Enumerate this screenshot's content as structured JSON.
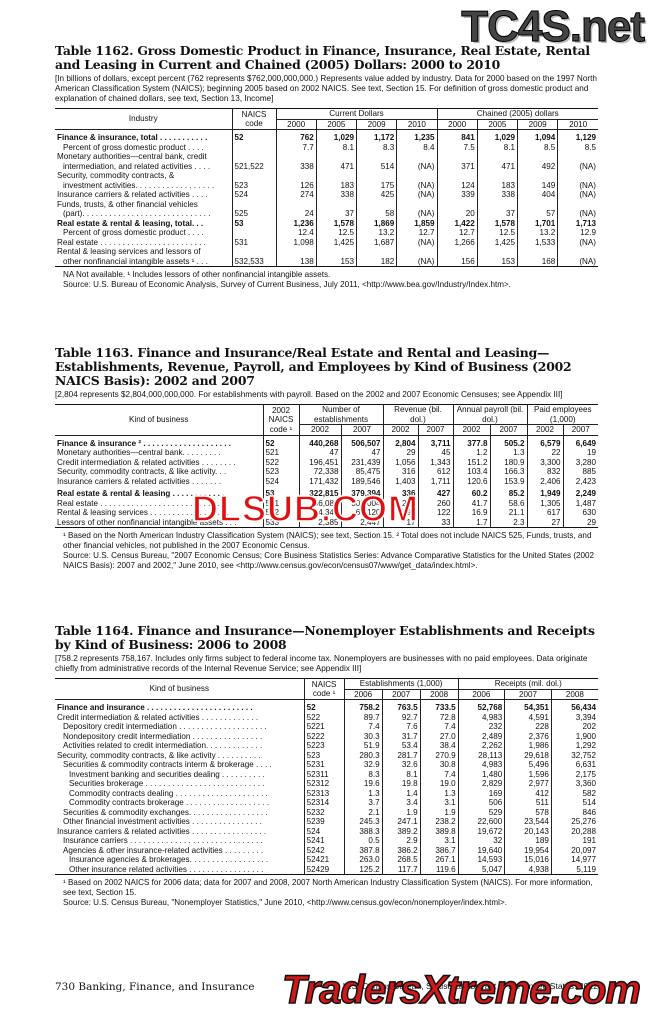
{
  "watermarks": {
    "top": "TC4S.net",
    "middle": "DLSUB.COM",
    "bottom": "TradersXtreme.com"
  },
  "t1162": {
    "title": "Table 1162. Gross Domestic Product in Finance, Insurance, Real Estate, Rental and Leasing in Current and Chained (2005) Dollars: 2000 to 2010",
    "intro": "[In billions of dollars, except percent (762 represents $762,000,000,000.) Represents value added by industry. Data for 2000 based on the 1997 North American Classification System (NAICS); beginning 2005 based on 2002 NAICS. See text, Section 15. For definition of gross domestic product and explanation of chained dollars, see text, Section 13, Income]",
    "h_industry": "Industry",
    "h_naics": "NAICS code",
    "h_cur": "Current Dollars",
    "h_chain": "Chained (2005) dollars",
    "years": [
      "2000",
      "2005",
      "2009",
      "2010",
      "2000",
      "2005",
      "2009",
      "2010"
    ],
    "rows": [
      {
        "label": "Finance & insurance, total . . . . . . . . . . .",
        "code": "52",
        "vals": [
          "762",
          "1,029",
          "1,172",
          "1,235",
          "841",
          "1,029",
          "1,094",
          "1,129"
        ],
        "bold": true
      },
      {
        "label": "Percent of gross domestic product . . . .",
        "code": "",
        "vals": [
          "7.7",
          "8.1",
          "8.3",
          "8.4",
          "7.5",
          "8.1",
          "8.5",
          "8.5"
        ],
        "indent": 1
      },
      {
        "label": "Monetary authorities—central bank, credit",
        "code": "",
        "vals": [
          "",
          "",
          "",
          "",
          "",
          "",
          "",
          ""
        ]
      },
      {
        "label": "intermediation, and related activities . . . .",
        "code": "521,522",
        "vals": [
          "338",
          "471",
          "514",
          "(NA)",
          "371",
          "471",
          "492",
          "(NA)"
        ],
        "indent": 1
      },
      {
        "label": "Security, commodity contracts, &",
        "code": "",
        "vals": [
          "",
          "",
          "",
          "",
          "",
          "",
          "",
          ""
        ]
      },
      {
        "label": "investment activities. . . . . . . . . . . . . . . . . .",
        "code": "523",
        "vals": [
          "126",
          "183",
          "175",
          "(NA)",
          "124",
          "183",
          "149",
          "(NA)"
        ],
        "indent": 1
      },
      {
        "label": "Insurance carriers & related activities . . . .",
        "code": "524",
        "vals": [
          "274",
          "338",
          "425",
          "(NA)",
          "339",
          "338",
          "404",
          "(NA)"
        ]
      },
      {
        "label": "Funds, trusts, & other financial vehicles",
        "code": "",
        "vals": [
          "",
          "",
          "",
          "",
          "",
          "",
          "",
          ""
        ]
      },
      {
        "label": "(part). . . . . . . . . . . . . . . . . . . . . . . . . . . . .",
        "code": "525",
        "vals": [
          "24",
          "37",
          "58",
          "(NA)",
          "20",
          "37",
          "57",
          "(NA)"
        ],
        "indent": 1
      },
      {
        "label": "Real estate & rental & leasing, total. . .",
        "code": "53",
        "vals": [
          "1,236",
          "1,578",
          "1,869",
          "1,859",
          "1,422",
          "1,578",
          "1,701",
          "1,713"
        ],
        "bold": true
      },
      {
        "label": "Percent of gross domestic product . . . .",
        "code": "",
        "vals": [
          "12.4",
          "12.5",
          "13.2",
          "12.7",
          "12.7",
          "12.5",
          "13.2",
          "12.9"
        ],
        "indent": 1
      },
      {
        "label": "Real estate . . . . . . . . . . . . . . . . . . . . . . . .",
        "code": "531",
        "vals": [
          "1,098",
          "1,425",
          "1,687",
          "(NA)",
          "1,266",
          "1,425",
          "1,533",
          "(NA)"
        ]
      },
      {
        "label": "Rental & leasing services and lessors of",
        "code": "",
        "vals": [
          "",
          "",
          "",
          "",
          "",
          "",
          "",
          ""
        ]
      },
      {
        "label": "other nonfinancial intangible assets ¹ . . .",
        "code": "532,533",
        "vals": [
          "138",
          "153",
          "182",
          "(NA)",
          "156",
          "153",
          "168",
          "(NA)"
        ],
        "indent": 1
      }
    ],
    "notes": [
      "NA Not available. ¹ Includes lessors of other nonfinancial intangible assets."
    ],
    "source": "Source: U.S. Bureau of Economic Analysis, Survey of Current Business, July 2011, <http://www.bea.gov/Industry/Index.htm>."
  },
  "t1163": {
    "title": "Table 1163. Finance and Insurance/Real Estate and Rental and Leasing—Establishments, Revenue, Payroll, and Employees by Kind of Business (2002 NAICS Basis): 2002 and 2007",
    "intro": "[2,804 represents $2,804,000,000,000. For establishments with payroll. Based on the 2002 and 2007 Economic Censuses; see Appendix III]",
    "h_kind": "Kind of business",
    "h_naics": "2002 NAICS code ¹",
    "h_est": "Number of establishments",
    "h_rev": "Revenue (bil. dol.)",
    "h_pay": "Annual payroll (bil. dol.)",
    "h_emp": "Paid employees (1,000)",
    "years": [
      "2002",
      "2007",
      "2002",
      "2007",
      "2002",
      "2007",
      "2002",
      "2007"
    ],
    "rows": [
      {
        "label": "Finance & insurance ² . . . . . . . . . . . . . . . . . . . .",
        "code": "52",
        "vals": [
          "440,268",
          "506,507",
          "2,804",
          "3,711",
          "377.8",
          "505.2",
          "6,579",
          "6,649"
        ],
        "bold": true
      },
      {
        "label": "Monetary authorities—central bank. . . . . . . . .",
        "code": "521",
        "vals": [
          "47",
          "47",
          "29",
          "45",
          "1.2",
          "1.3",
          "22",
          "19"
        ]
      },
      {
        "label": "Credit intermediation & related activities . . . . . . . .",
        "code": "522",
        "vals": [
          "196,451",
          "231,439",
          "1,056",
          "1,343",
          "151.2",
          "180.9",
          "3,300",
          "3,280"
        ]
      },
      {
        "label": "Security, commodity contracts, & like activity. . .",
        "code": "523",
        "vals": [
          "72,338",
          "85,475",
          "316",
          "612",
          "103.4",
          "166.3",
          "832",
          "885"
        ]
      },
      {
        "label": "Insurance carriers & related activities . . . . . . .",
        "code": "524",
        "vals": [
          "171,432",
          "189,546",
          "1,403",
          "1,711",
          "120.6",
          "153.9",
          "2,406",
          "2,423"
        ]
      },
      {
        "label": "Real estate & rental & leasing . . . . . . . . . . . .",
        "code": "53",
        "vals": [
          "322,815",
          "379,394",
          "336",
          "427",
          "60.2",
          "85.2",
          "1,949",
          "2,249"
        ],
        "bold": true,
        "gap": true
      },
      {
        "label": "Real estate . . . . . . . . . . . . . . . . . . . . . . . . . . . .",
        "code": "531",
        "vals": [
          "256,086",
          "306,004",
          "224",
          "260",
          "41.7",
          "58.6",
          "1,305",
          "1,487"
        ]
      },
      {
        "label": "Rental & leasing services . . . . . . . . . . . . . . . . . .",
        "code": "532",
        "vals": [
          "64,344",
          "65,120",
          "95",
          "122",
          "16.9",
          "21.1",
          "617",
          "630"
        ]
      },
      {
        "label": "Lessors of other nonfinancial intangible assets . . .",
        "code": "533",
        "vals": [
          "2,385",
          "2,447",
          "17",
          "33",
          "1.7",
          "2.3",
          "27",
          "29"
        ]
      }
    ],
    "notes": [
      "¹ Based on the North American Industry Classification System (NAICS); see text, Section 15. ² Total does not include NAICS 525, Funds, trusts, and other financial vehicles, not published in the 2007 Economic Census."
    ],
    "source": "Source: U.S. Census Bureau, \"2007 Economic Census; Core Business Statistics Series: Advance Comparative Statistics for the United States (2002 NAICS Basis): 2007 and 2002,\" June 2010, see <http://www.census.gov/econ/census07/www/get_data/index.html>."
  },
  "t1164": {
    "title": "Table 1164. Finance and Insurance—Nonemployer Establishments and Receipts by Kind of Business: 2006 to 2008",
    "intro": "[758.2 represents 758,167. Includes only firms subject to federal income tax. Nonemployers are businesses with no paid employees. Data originate chiefly from administrative records of the Internal Revenue Service; see Appendix III]",
    "h_kind": "Kind of business",
    "h_naics": "NAICS code ¹",
    "h_est": "Establishments (1,000)",
    "h_rec": "Receipts (mil. dol.)",
    "years": [
      "2006",
      "2007",
      "2008",
      "2006",
      "2007",
      "2008"
    ],
    "rows": [
      {
        "label": "Finance and insurance . . . . . . . . . . . . . . . . . . . . . . . .",
        "code": "52",
        "vals": [
          "758.2",
          "763.5",
          "733.5",
          "52,768",
          "54,351",
          "56,434"
        ],
        "bold": true
      },
      {
        "label": "Credit intermediation & related activities . . . . . . . . . . . . .",
        "code": "522",
        "vals": [
          "89.7",
          "92.7",
          "72.8",
          "4,983",
          "4,591",
          "3,394"
        ]
      },
      {
        "label": "Depository credit intermediation . . . . . . . . . . . . . . . . . . . .",
        "code": "5221",
        "vals": [
          "7.4",
          "7.6",
          "7.4",
          "232",
          "228",
          "202"
        ],
        "indent": 1
      },
      {
        "label": "Nondepository credit intermediation . . . . . . . . . . . . . . . .",
        "code": "5222",
        "vals": [
          "30.3",
          "31.7",
          "27.0",
          "2,489",
          "2,376",
          "1,900"
        ],
        "indent": 1
      },
      {
        "label": "Activities related to credit intermediation. . . . . . . . . . . . .",
        "code": "5223",
        "vals": [
          "51.9",
          "53.4",
          "38.4",
          "2,262",
          "1,986",
          "1,292"
        ],
        "indent": 1
      },
      {
        "label": "Security, commodity contracts, & like activity . . . . . . . . . .",
        "code": "523",
        "vals": [
          "280.3",
          "281.7",
          "270.9",
          "28,113",
          "29,618",
          "32,752"
        ]
      },
      {
        "label": "Securities & commodity contracts interm & brokerage . . . .",
        "code": "5231",
        "vals": [
          "32.9",
          "32.6",
          "30.8",
          "4,983",
          "5,496",
          "6,631"
        ],
        "indent": 1
      },
      {
        "label": "Investment banking and securities dealing . . . . . . . . . .",
        "code": "52311",
        "vals": [
          "8.3",
          "8.1",
          "7.4",
          "1,480",
          "1,596",
          "2,175"
        ],
        "indent": 2
      },
      {
        "label": "Securities brokerage . . . . . . . . . . . . . . . . . . . . . . . . . . .",
        "code": "52312",
        "vals": [
          "19.6",
          "19.8",
          "19.0",
          "2,829",
          "2,977",
          "3,360"
        ],
        "indent": 2
      },
      {
        "label": "Commodity contracts dealing . . . . . . . . . . . . . . . . . . . . .",
        "code": "52313",
        "vals": [
          "1.3",
          "1.4",
          "1.3",
          "169",
          "412",
          "582"
        ],
        "indent": 2
      },
      {
        "label": "Commodity contracts brokerage . . . . . . . . . . . . . . . . . . .",
        "code": "52314",
        "vals": [
          "3.7",
          "3.4",
          "3.1",
          "506",
          "511",
          "514"
        ],
        "indent": 2
      },
      {
        "label": "Securities & commodity exchanges. . . . . . . . . . . . . . . . . .",
        "code": "5232",
        "vals": [
          "2.1",
          "1.9",
          "1.9",
          "529",
          "578",
          "846"
        ],
        "indent": 1
      },
      {
        "label": "Other financial investment activities . . . . . . . . . . . . . . . .",
        "code": "5239",
        "vals": [
          "245.3",
          "247.1",
          "238.2",
          "22,600",
          "23,544",
          "25,276"
        ],
        "indent": 1
      },
      {
        "label": "Insurance carriers & related activities . . . . . . . . . . . . . . . . .",
        "code": "524",
        "vals": [
          "388.3",
          "389.2",
          "389.8",
          "19,672",
          "20,143",
          "20,288"
        ]
      },
      {
        "label": "Insurance carriers . . . . . . . . . . . . . . . . . . . . . . . . . . . . . .",
        "code": "5241",
        "vals": [
          "0.5",
          "2.9",
          "3.1",
          "32",
          "189",
          "191"
        ],
        "indent": 1
      },
      {
        "label": "Agencies & other insurance-related activities . . . . . . . . .",
        "code": "5242",
        "vals": [
          "387.8",
          "386.2",
          "386.7",
          "19,640",
          "19,954",
          "20,097"
        ],
        "indent": 1
      },
      {
        "label": "Insurance agencies & brokerages. . . . . . . . . . . . . . . . . .",
        "code": "52421",
        "vals": [
          "263.0",
          "268.5",
          "267.1",
          "14,593",
          "15,016",
          "14,977"
        ],
        "indent": 2
      },
      {
        "label": "Other insurance related activities . . . . . . . . . . . . . . . . .",
        "code": "52429",
        "vals": [
          "125.2",
          "117.7",
          "119.6",
          "5,047",
          "4,938",
          "5,119"
        ],
        "indent": 2
      }
    ],
    "notes": [
      "¹ Based on 2002 NAICS for 2006 data; data for 2007 and 2008, 2007 North American Industry Classification System (NAICS). For more information, see text, Section 15."
    ],
    "source": "Source: U.S. Census Bureau, \"Nonemployer Statistics,\" June 2010, <http://www.census.gov/econ/nonemployer/index.html>."
  },
  "page": {
    "number": "730",
    "section": "Banking, Finance, and Insurance",
    "credit": "U.S. Census Bureau, Statistical Abstract of the United States: 2012"
  }
}
